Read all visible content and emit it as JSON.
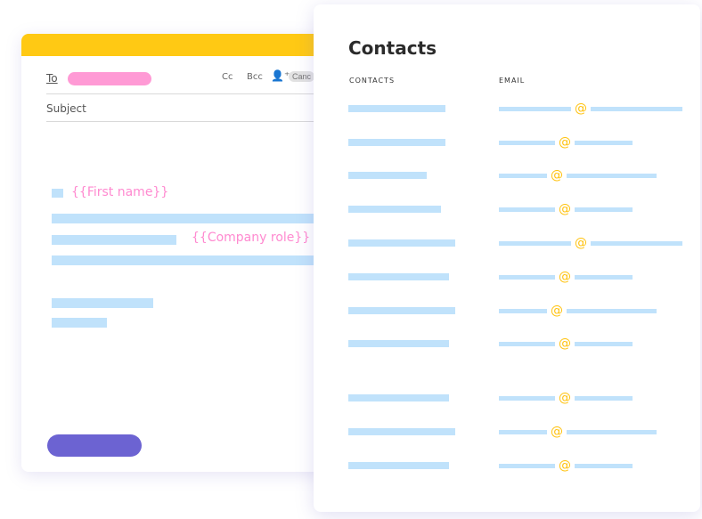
{
  "email": {
    "to_label": "To",
    "cc_label": "Cc",
    "bcc_label": "Bcc",
    "add_person_icon": "person-add-icon",
    "cancel_label": "Canc",
    "subject_label": "Subject",
    "first_name_var": "{{First name}}",
    "company_role_var": "{{Company role}}"
  },
  "contacts": {
    "title": "Contacts",
    "col_contacts": "CONTACTS",
    "col_email": "EMAIL",
    "at_symbol": "@",
    "row_count": 11
  },
  "colors": {
    "header": "#ffc914",
    "recipient_pill": "#ff9ad5",
    "placeholder": "#c0e2fb",
    "variable": "#ff8ad0",
    "send_button": "#6c63d2",
    "at": "#ffc20e"
  }
}
